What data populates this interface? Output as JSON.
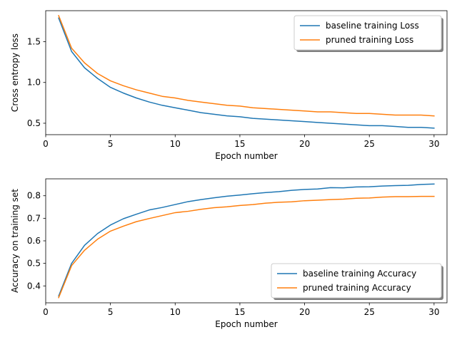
{
  "chart_data": [
    {
      "type": "line",
      "xlabel": "Epoch number",
      "ylabel": "Cross entropy loss",
      "xlim": [
        0,
        31
      ],
      "ylim": [
        0.36,
        1.88
      ],
      "xticks": [
        0,
        5,
        10,
        15,
        20,
        25,
        30
      ],
      "yticks": [
        0.5,
        1.0,
        1.5
      ],
      "ytick_labels": [
        "0.5",
        "1.0",
        "1.5"
      ],
      "legend_position": "top-right",
      "grid": false,
      "x": [
        1,
        2,
        3,
        4,
        5,
        6,
        7,
        8,
        9,
        10,
        11,
        12,
        13,
        14,
        15,
        16,
        17,
        18,
        19,
        20,
        21,
        22,
        23,
        24,
        25,
        26,
        27,
        28,
        29,
        30
      ],
      "series": [
        {
          "name": "baseline training Loss",
          "color": "#1f77b4",
          "values": [
            1.79,
            1.38,
            1.18,
            1.05,
            0.94,
            0.87,
            0.81,
            0.76,
            0.72,
            0.69,
            0.66,
            0.63,
            0.61,
            0.59,
            0.58,
            0.56,
            0.55,
            0.54,
            0.53,
            0.52,
            0.51,
            0.5,
            0.49,
            0.48,
            0.47,
            0.47,
            0.46,
            0.45,
            0.45,
            0.44
          ]
        },
        {
          "name": "pruned training Loss",
          "color": "#ff7f0e",
          "values": [
            1.82,
            1.42,
            1.24,
            1.11,
            1.02,
            0.96,
            0.91,
            0.87,
            0.83,
            0.81,
            0.78,
            0.76,
            0.74,
            0.72,
            0.71,
            0.69,
            0.68,
            0.67,
            0.66,
            0.65,
            0.64,
            0.64,
            0.63,
            0.62,
            0.62,
            0.61,
            0.6,
            0.6,
            0.6,
            0.59
          ]
        }
      ]
    },
    {
      "type": "line",
      "xlabel": "Epoch number",
      "ylabel": "Accuracy on training set",
      "xlim": [
        0,
        31
      ],
      "ylim": [
        0.325,
        0.875
      ],
      "xticks": [
        0,
        5,
        10,
        15,
        20,
        25,
        30
      ],
      "yticks": [
        0.4,
        0.5,
        0.6,
        0.7,
        0.8
      ],
      "ytick_labels": [
        "0.4",
        "0.5",
        "0.6",
        "0.7",
        "0.8"
      ],
      "legend_position": "bottom-right",
      "grid": false,
      "x": [
        1,
        2,
        3,
        4,
        5,
        6,
        7,
        8,
        9,
        10,
        11,
        12,
        13,
        14,
        15,
        16,
        17,
        18,
        19,
        20,
        21,
        22,
        23,
        24,
        25,
        26,
        27,
        28,
        29,
        30
      ],
      "series": [
        {
          "name": "baseline training Accuracy",
          "color": "#1f77b4",
          "values": [
            0.355,
            0.5,
            0.58,
            0.632,
            0.67,
            0.698,
            0.718,
            0.737,
            0.748,
            0.761,
            0.774,
            0.783,
            0.791,
            0.798,
            0.803,
            0.809,
            0.814,
            0.818,
            0.824,
            0.828,
            0.83,
            0.836,
            0.835,
            0.839,
            0.84,
            0.843,
            0.845,
            0.846,
            0.85,
            0.852
          ]
        },
        {
          "name": "pruned training Accuracy",
          "color": "#ff7f0e",
          "values": [
            0.348,
            0.49,
            0.558,
            0.607,
            0.643,
            0.665,
            0.685,
            0.699,
            0.712,
            0.725,
            0.731,
            0.74,
            0.747,
            0.751,
            0.757,
            0.761,
            0.767,
            0.771,
            0.773,
            0.778,
            0.78,
            0.783,
            0.785,
            0.789,
            0.79,
            0.794,
            0.796,
            0.796,
            0.797,
            0.797
          ]
        }
      ]
    }
  ]
}
